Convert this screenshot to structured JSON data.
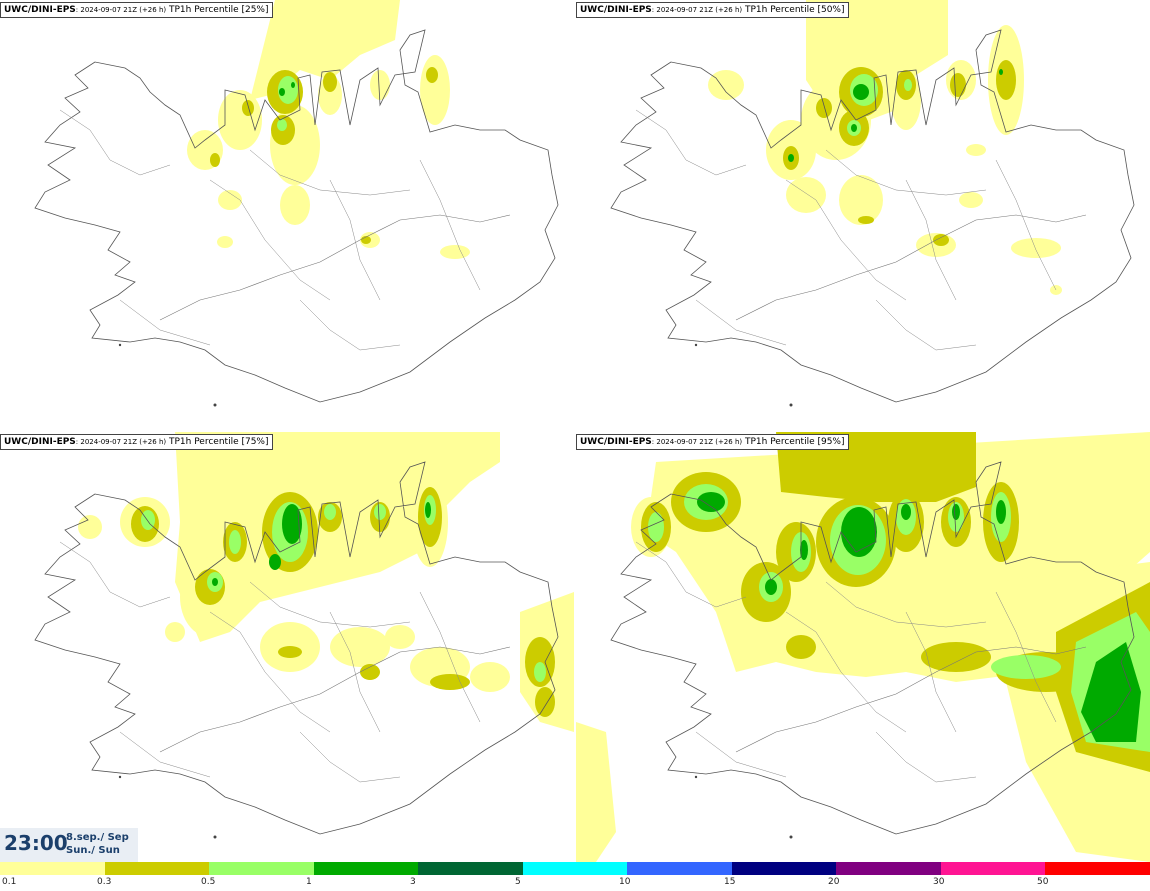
{
  "panels": [
    {
      "source": "UWC/DINI-EPS",
      "run": ": 2024-09-07 21Z (+26 h)",
      "label": " TP1h Percentile [25%]"
    },
    {
      "source": "UWC/DINI-EPS",
      "run": ": 2024-09-07 21Z (+26 h)",
      "label": " TP1h Percentile [50%]"
    },
    {
      "source": "UWC/DINI-EPS",
      "run": ": 2024-09-07 21Z (+26 h)",
      "label": " TP1h Percentile [75%]"
    },
    {
      "source": "UWC/DINI-EPS",
      "run": ": 2024-09-07 21Z (+26 h)",
      "label": " TP1h Percentile [95%]"
    }
  ],
  "valid_time": {
    "time": "23:00",
    "date": "8.sep./ Sep",
    "day": "Sun./ Sun"
  },
  "legend": {
    "colors": [
      "#ffff99",
      "#cccc00",
      "#99ff66",
      "#00aa00",
      "#006633",
      "#00ffff",
      "#3366ff",
      "#000080",
      "#800080",
      "#ff1493",
      "#ff0000"
    ],
    "labels": [
      "0.1",
      "0.3",
      "0.5",
      "1",
      "3",
      "5",
      "10",
      "15",
      "20",
      "30",
      "50"
    ]
  }
}
